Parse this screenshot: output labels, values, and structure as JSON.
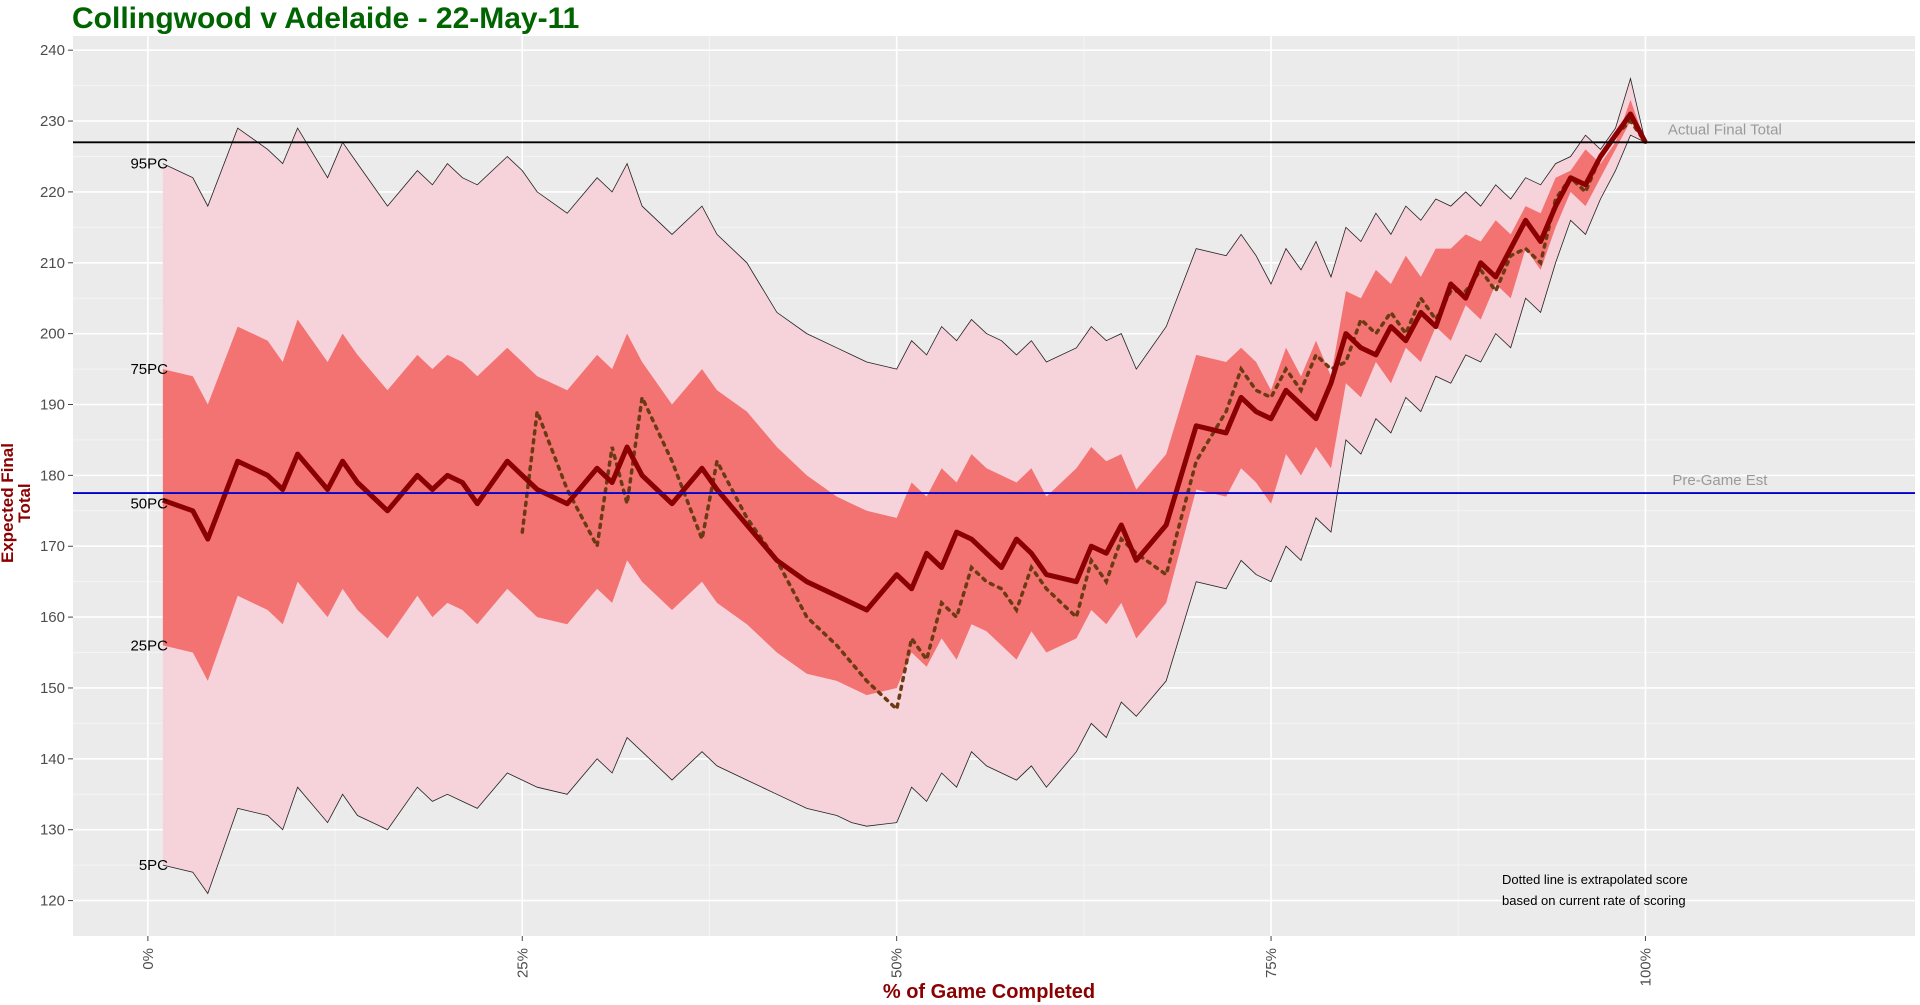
{
  "title": "Collingwood v Adelaide - 22-May-11",
  "colors": {
    "title": "#006400",
    "axis_label": "#8b0000",
    "panel_bg": "#ebebeb",
    "band_outer": "#f6d2da",
    "band_inner": "#f37373",
    "band_center": "#e82a2a",
    "median_line": "#8b0000",
    "dotted_line": "#6b3a12",
    "actual_line": "#000000",
    "pregame_line": "#0000cd"
  },
  "chart_data": {
    "type": "line",
    "title": "Collingwood v Adelaide - 22-May-11",
    "xlabel": "% of Game Completed",
    "ylabel": "Expected Final Total",
    "xlim": [
      -5,
      118
    ],
    "ylim": [
      115,
      242
    ],
    "x_ticks": [
      0,
      25,
      50,
      75,
      100
    ],
    "x_tick_labels": [
      "0%",
      "25%",
      "50%",
      "75%",
      "100%"
    ],
    "y_ticks": [
      120,
      130,
      140,
      150,
      160,
      170,
      180,
      190,
      200,
      210,
      220,
      230,
      240
    ],
    "grid": true,
    "percentile_labels": [
      {
        "text": "95PC",
        "y": 224
      },
      {
        "text": "75PC",
        "y": 195
      },
      {
        "text": "50PC",
        "y": 176
      },
      {
        "text": "25PC",
        "y": 156
      },
      {
        "text": "5PC",
        "y": 125
      }
    ],
    "reference_lines": [
      {
        "name": "actual",
        "label": "Actual Final Total",
        "y": 227
      },
      {
        "name": "pregame",
        "label": "Pre-Game Est",
        "y": 177.5
      }
    ],
    "annotation": [
      "Dotted line is extrapolated score",
      "based on current rate of scoring"
    ],
    "x": [
      1,
      3,
      4,
      6,
      8,
      9,
      10,
      12,
      13,
      14,
      16,
      18,
      19,
      20,
      21,
      22,
      24,
      25,
      26,
      28,
      30,
      31,
      32,
      33,
      35,
      37,
      38,
      40,
      42,
      44,
      46,
      47,
      48,
      50,
      51,
      52,
      53,
      54,
      55,
      56,
      57,
      58,
      59,
      60,
      62,
      63,
      64,
      65,
      66,
      68,
      70,
      72,
      73,
      74,
      75,
      76,
      77,
      78,
      79,
      80,
      81,
      82,
      83,
      84,
      85,
      86,
      87,
      88,
      89,
      90,
      91,
      92,
      93,
      94,
      95,
      96,
      97,
      98,
      99,
      100
    ],
    "series": [
      {
        "name": "95PC",
        "values": [
          224,
          222,
          218,
          229,
          226,
          224,
          229,
          222,
          227,
          224,
          218,
          223,
          221,
          224,
          222,
          221,
          225,
          223,
          220,
          217,
          222,
          220,
          224,
          218,
          214,
          218,
          214,
          210,
          203,
          200,
          198,
          197,
          196,
          195,
          199,
          197,
          201,
          199,
          202,
          200,
          199,
          197,
          199,
          196,
          198,
          201,
          199,
          200,
          195,
          201,
          212,
          211,
          214,
          211,
          207,
          212,
          209,
          213,
          208,
          215,
          213,
          217,
          214,
          218,
          216,
          219,
          218,
          220,
          218,
          221,
          219,
          222,
          221,
          224,
          225,
          228,
          226,
          229,
          236,
          227
        ]
      },
      {
        "name": "75PC",
        "values": [
          195,
          194,
          190,
          201,
          199,
          196,
          202,
          196,
          200,
          197,
          192,
          197,
          195,
          197,
          196,
          194,
          198,
          196,
          194,
          192,
          197,
          195,
          200,
          196,
          190,
          195,
          192,
          189,
          184,
          180,
          177,
          176,
          175,
          174,
          179,
          177,
          181,
          179,
          183,
          181,
          180,
          179,
          181,
          177,
          181,
          184,
          182,
          183,
          178,
          183,
          197,
          196,
          198,
          196,
          192,
          198,
          194,
          199,
          194,
          206,
          205,
          209,
          207,
          211,
          208,
          212,
          212,
          214,
          213,
          216,
          214,
          218,
          217,
          222,
          223,
          226,
          224,
          227,
          233,
          227
        ]
      },
      {
        "name": "50PC",
        "values": [
          176.5,
          175,
          171,
          182,
          180,
          178,
          183,
          178,
          182,
          179,
          175,
          180,
          178,
          180,
          179,
          176,
          182,
          180,
          178,
          176,
          181,
          179,
          184,
          180,
          176,
          181,
          178,
          173,
          168,
          165,
          163,
          162,
          161,
          166,
          164,
          169,
          167,
          172,
          171,
          169,
          167,
          171,
          169,
          166,
          165,
          170,
          169,
          173,
          168,
          173,
          187,
          186,
          191,
          189,
          188,
          192,
          190,
          188,
          193,
          200,
          198,
          197,
          201,
          199,
          203,
          201,
          207,
          205,
          210,
          208,
          212,
          216,
          213,
          218,
          222,
          221,
          225,
          228,
          231,
          227
        ]
      },
      {
        "name": "25PC",
        "values": [
          156,
          155,
          151,
          163,
          161,
          159,
          165,
          160,
          164,
          161,
          157,
          163,
          160,
          162,
          161,
          159,
          164,
          162,
          160,
          159,
          164,
          162,
          168,
          165,
          161,
          165,
          162,
          159,
          155,
          152,
          151,
          150,
          149,
          150,
          155,
          153,
          157,
          154,
          159,
          158,
          156,
          154,
          158,
          155,
          157,
          161,
          159,
          162,
          157,
          162,
          178,
          177,
          181,
          179,
          176,
          183,
          180,
          184,
          181,
          193,
          191,
          196,
          193,
          198,
          196,
          201,
          199,
          204,
          202,
          207,
          205,
          212,
          209,
          215,
          220,
          218,
          222,
          226,
          230,
          227
        ]
      },
      {
        "name": "5PC",
        "values": [
          125,
          124,
          121,
          133,
          132,
          130,
          136,
          131,
          135,
          132,
          130,
          136,
          134,
          135,
          134,
          133,
          138,
          137,
          136,
          135,
          140,
          138,
          143,
          141,
          137,
          141,
          139,
          137,
          135,
          133,
          132,
          131,
          130.5,
          131,
          136,
          134,
          138,
          136,
          141,
          139,
          138,
          137,
          139,
          136,
          141,
          145,
          143,
          148,
          146,
          151,
          165,
          164,
          168,
          166,
          165,
          170,
          168,
          174,
          172,
          185,
          183,
          188,
          186,
          191,
          189,
          194,
          193,
          197,
          196,
          200,
          198,
          205,
          203,
          210,
          216,
          214,
          219,
          223,
          228,
          227
        ]
      }
    ],
    "dotted_series": {
      "name": "extrapolated",
      "x": [
        25,
        26,
        28,
        30,
        31,
        32,
        33,
        35,
        37,
        38,
        40,
        42,
        44,
        46,
        48,
        50,
        51,
        52,
        53,
        54,
        55,
        56,
        57,
        58,
        59,
        60,
        62,
        63,
        64,
        65,
        66,
        68,
        70,
        72,
        73,
        74,
        75,
        76,
        77,
        78,
        79,
        80,
        81,
        82,
        83,
        84,
        85,
        86,
        87,
        88,
        89,
        90,
        91,
        92,
        93,
        94,
        95,
        96,
        97,
        98,
        99,
        100
      ],
      "values": [
        172,
        189,
        178,
        170,
        184,
        176,
        191,
        182,
        171,
        182,
        174,
        168,
        160,
        156,
        151,
        147,
        157,
        154,
        162,
        160,
        167,
        165,
        164,
        161,
        167,
        164,
        160,
        168,
        165,
        171,
        169,
        166,
        182,
        189,
        195,
        192,
        191,
        195,
        192,
        197,
        195,
        196,
        202,
        200,
        203,
        200,
        205,
        202,
        206,
        206,
        209,
        206,
        211,
        212,
        210,
        219,
        222,
        220,
        225,
        228,
        230,
        227
      ]
    }
  }
}
